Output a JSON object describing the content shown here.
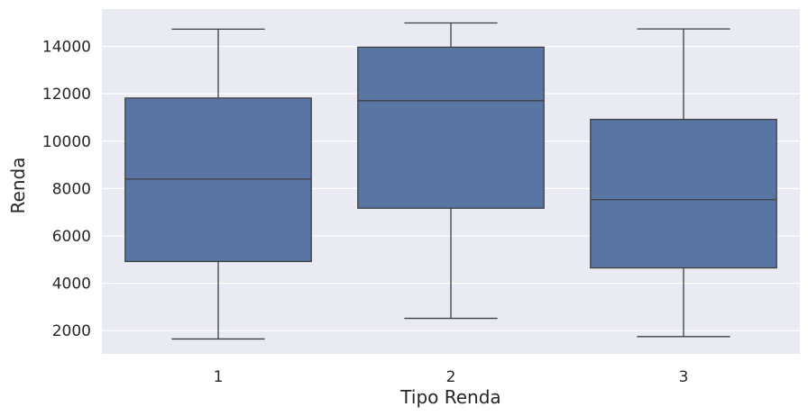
{
  "chart_data": {
    "type": "box",
    "title": "",
    "xlabel": "Tipo Renda",
    "ylabel": "Renda",
    "categories": [
      "1",
      "2",
      "3"
    ],
    "boxes": [
      {
        "category": "1",
        "whisker_low": 1650,
        "q1": 4920,
        "median": 8400,
        "q3": 11820,
        "whisker_high": 14730
      },
      {
        "category": "2",
        "whisker_low": 2520,
        "q1": 7170,
        "median": 11710,
        "q3": 13970,
        "whisker_high": 14990
      },
      {
        "category": "3",
        "whisker_low": 1750,
        "q1": 4650,
        "median": 7530,
        "q3": 10920,
        "whisker_high": 14740
      }
    ],
    "ylim": [
      1020,
      15580
    ],
    "yticks": [
      2000,
      4000,
      6000,
      8000,
      10000,
      12000,
      14000
    ],
    "grid": true,
    "colors": {
      "box_fill": "#5875a4",
      "box_line": "#3f3f3f",
      "plot_bg": "#eaeaf2",
      "grid": "#ffffff",
      "text": "#262626"
    }
  }
}
